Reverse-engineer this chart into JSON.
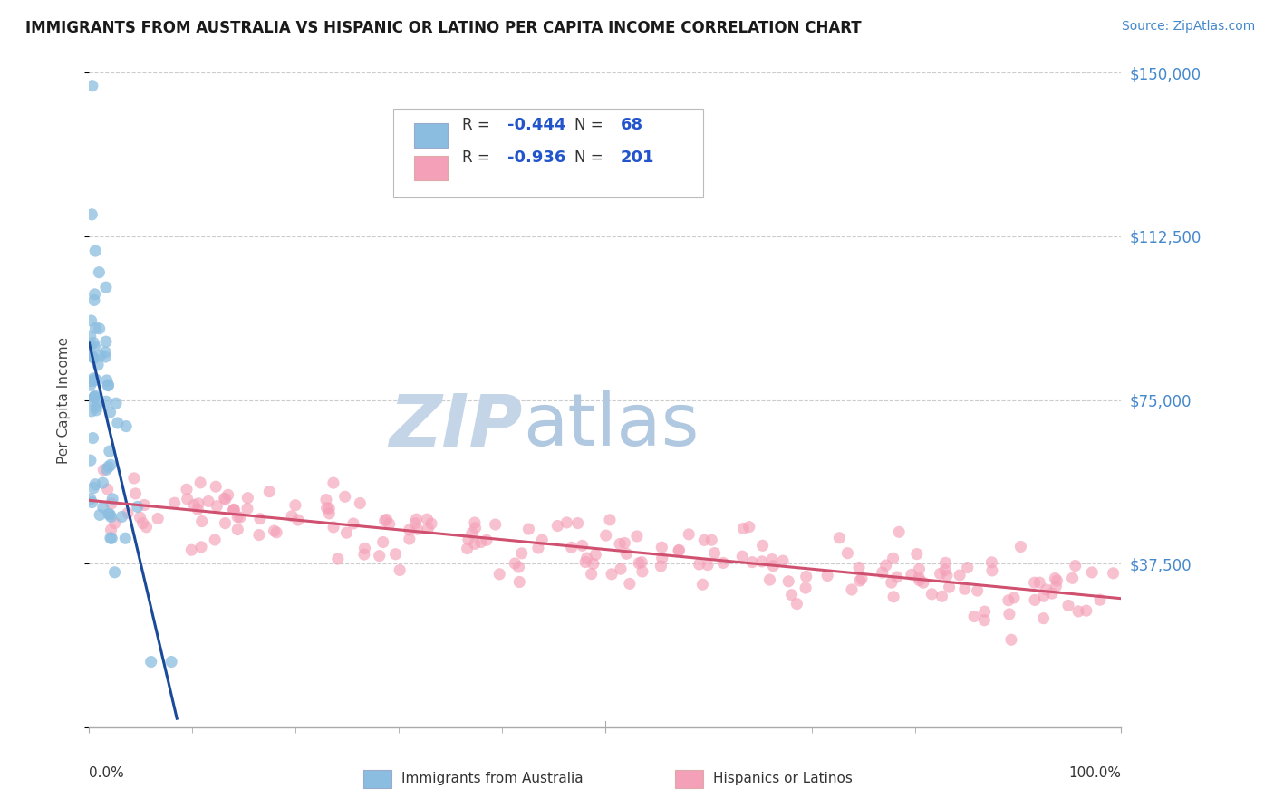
{
  "title": "IMMIGRANTS FROM AUSTRALIA VS HISPANIC OR LATINO PER CAPITA INCOME CORRELATION CHART",
  "source": "Source: ZipAtlas.com",
  "ylabel": "Per Capita Income",
  "watermark_zip": "ZIP",
  "watermark_atlas": "atlas",
  "xlim": [
    0,
    1.0
  ],
  "ylim": [
    0,
    150000
  ],
  "yticks": [
    0,
    37500,
    75000,
    112500,
    150000
  ],
  "ytick_labels": [
    "",
    "$37,500",
    "$75,000",
    "$112,500",
    "$150,000"
  ],
  "xtick_labels": [
    "0.0%",
    "100.0%"
  ],
  "legend_R1": "-0.444",
  "legend_N1": "68",
  "legend_R2": "-0.936",
  "legend_N2": "201",
  "legend_label1": "Immigrants from Australia",
  "legend_label2": "Hispanics or Latinos",
  "blue_scatter_color": "#8bbde0",
  "pink_scatter_color": "#f4a0b8",
  "blue_line_color": "#1a4a9a",
  "pink_line_color": "#d05070",
  "background_color": "#ffffff",
  "grid_color": "#cccccc",
  "title_color": "#1a1a1a",
  "axis_label_color": "#444444",
  "ytick_color": "#4488cc",
  "xtick_color": "#333333",
  "source_color": "#4488cc",
  "watermark_color": "#c5d5e8",
  "legend_box_color": "#dddddd",
  "blue_line_x0": 0.0,
  "blue_line_x1": 0.085,
  "blue_line_y0": 88000,
  "blue_line_y1": 2000,
  "pink_line_x0": 0.0,
  "pink_line_x1": 1.0,
  "pink_line_y0": 52000,
  "pink_line_y1": 29500
}
